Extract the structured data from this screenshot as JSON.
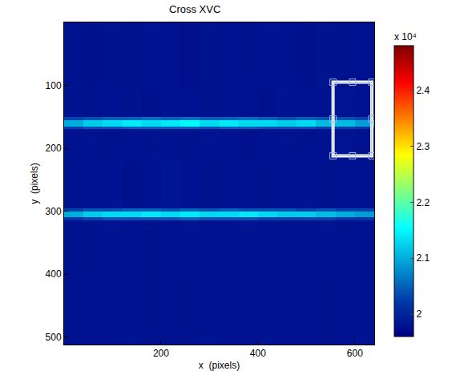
{
  "chart_data": {
    "type": "heatmap",
    "title": "Cross XVC",
    "x_label": "x  (pixels)",
    "y_label": "y  (pixels)",
    "x": [
      0,
      40,
      80,
      120,
      160,
      200,
      240,
      280,
      320,
      360,
      400,
      440,
      480,
      520,
      560,
      600,
      640
    ],
    "y": [
      0,
      100,
      150,
      155,
      165,
      170,
      220,
      295,
      300,
      310,
      315,
      400,
      512
    ],
    "cells": [
      [
        19800,
        19780,
        19820,
        19790,
        19810,
        19800,
        19770,
        19820,
        19800,
        19790,
        19810,
        19800,
        19780,
        19820,
        19790,
        19800
      ],
      [
        19810,
        19790,
        19800,
        19820,
        19780,
        19810,
        19800,
        19790,
        19820,
        19800,
        19780,
        19810,
        19800,
        19790,
        19810,
        19790
      ],
      [
        20300,
        20400,
        20500,
        20500,
        20600,
        20500,
        20600,
        20500,
        20500,
        20600,
        20500,
        20400,
        20500,
        20400,
        20400,
        20300
      ],
      [
        21000,
        21200,
        21300,
        21400,
        21300,
        21400,
        21500,
        21300,
        21400,
        21300,
        21300,
        21200,
        21300,
        21100,
        21100,
        20900
      ],
      [
        20300,
        20400,
        20400,
        20500,
        20500,
        20500,
        20500,
        20400,
        20500,
        20500,
        20400,
        20400,
        20400,
        20300,
        20300,
        20200
      ],
      [
        19800,
        19810,
        19790,
        19800,
        19820,
        19800,
        19790,
        19810,
        19800,
        19780,
        19800,
        19810,
        19790,
        19800,
        19810,
        19790
      ],
      [
        19790,
        19800,
        19810,
        19780,
        19800,
        19830,
        19800,
        19790,
        19810,
        19800,
        19790,
        19800,
        19810,
        19790,
        19800,
        19800
      ],
      [
        20300,
        20400,
        20400,
        20500,
        20500,
        20400,
        20500,
        20400,
        20500,
        20400,
        20400,
        20400,
        20300,
        20400,
        20300,
        20300
      ],
      [
        21000,
        21200,
        21300,
        21300,
        21400,
        21300,
        21400,
        21300,
        21300,
        21400,
        21300,
        21200,
        21200,
        21100,
        21000,
        20900
      ],
      [
        20200,
        20300,
        20400,
        20400,
        20400,
        20400,
        20500,
        20400,
        20400,
        20400,
        20300,
        20300,
        20300,
        20300,
        20200,
        20200
      ],
      [
        19800,
        19790,
        19810,
        19800,
        19790,
        19800,
        19810,
        19800,
        19790,
        19810,
        19800,
        19790,
        19800,
        19810,
        19790,
        19800
      ],
      [
        19790,
        19800,
        19800,
        19810,
        19790,
        19800,
        19790,
        19810,
        19800,
        19800,
        19810,
        19790,
        19800,
        19790,
        19800,
        19810
      ]
    ],
    "xlim": [
      0,
      640
    ],
    "ylim": [
      512,
      0
    ],
    "xticks": [
      200,
      400,
      600
    ],
    "yticks": [
      100,
      200,
      300,
      400,
      500
    ],
    "color_range": [
      19600,
      24800
    ],
    "color_ticks": [
      {
        "value": 20000,
        "label": "2"
      },
      {
        "value": 21000,
        "label": "2.1"
      },
      {
        "value": 22000,
        "label": "2.2"
      },
      {
        "value": 23000,
        "label": "2.3"
      },
      {
        "value": 24000,
        "label": "2.4"
      }
    ],
    "color_label": "x 10⁴",
    "roi": {
      "x": [
        555,
        635
      ],
      "y": [
        95,
        212
      ]
    }
  }
}
